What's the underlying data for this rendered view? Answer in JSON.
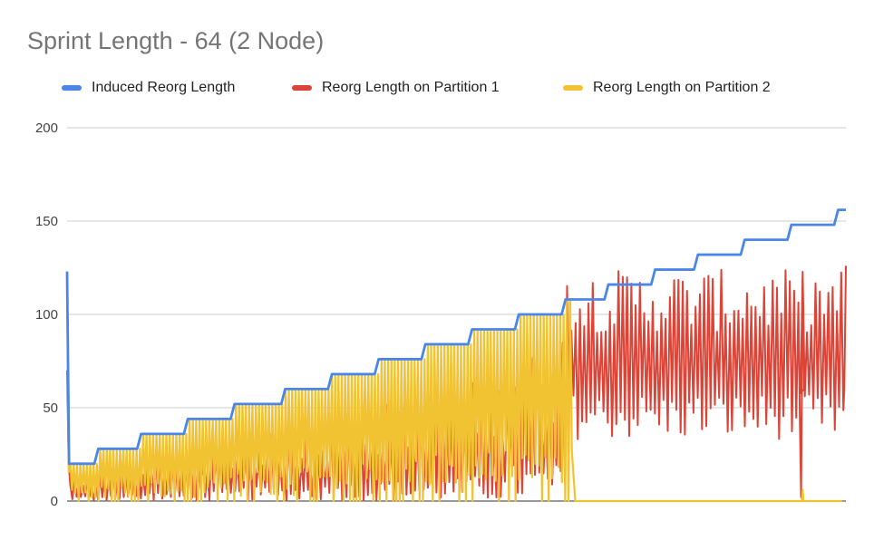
{
  "chart_data": {
    "type": "line",
    "title": "Sprint Length - 64 (2 Node)",
    "xlabel": "",
    "ylabel": "",
    "ylim": [
      0,
      200
    ],
    "yticks": [
      0,
      50,
      100,
      150,
      200
    ],
    "grid": true,
    "legend_position": "top",
    "series": [
      {
        "name": "Induced Reorg Length",
        "color": "#4a86e8",
        "pattern": "steps",
        "points": [
          [
            0,
            123
          ],
          [
            0.5,
            20
          ],
          [
            7,
            20
          ],
          [
            8,
            28
          ],
          [
            18,
            28
          ],
          [
            19,
            36
          ],
          [
            30,
            36
          ],
          [
            31,
            44
          ],
          [
            42,
            44
          ],
          [
            43,
            52
          ],
          [
            55,
            52
          ],
          [
            56,
            60
          ],
          [
            67,
            60
          ],
          [
            68,
            68
          ],
          [
            79,
            68
          ],
          [
            80,
            76
          ],
          [
            91,
            76
          ],
          [
            92,
            84
          ],
          [
            103,
            84
          ],
          [
            104,
            92
          ],
          [
            115,
            92
          ],
          [
            116,
            100
          ],
          [
            127,
            100
          ],
          [
            128,
            108
          ],
          [
            138,
            108
          ],
          [
            139,
            116
          ],
          [
            150,
            116
          ],
          [
            151,
            124
          ],
          [
            161,
            124
          ],
          [
            162,
            132
          ],
          [
            173,
            132
          ],
          [
            174,
            140
          ],
          [
            185,
            140
          ],
          [
            186,
            148
          ],
          [
            197,
            148
          ],
          [
            198,
            156
          ],
          [
            200,
            156
          ]
        ]
      },
      {
        "name": "Reorg Length on Partition 1",
        "color": "#db4437",
        "pattern": "oscillating",
        "x_range": [
          0,
          200
        ],
        "approx_range": [
          0,
          126
        ]
      },
      {
        "name": "Reorg Length on Partition 2",
        "color": "#f1c232",
        "pattern": "oscillating",
        "x_range": [
          0,
          130
        ],
        "approx_range": [
          0,
          108
        ]
      }
    ]
  }
}
